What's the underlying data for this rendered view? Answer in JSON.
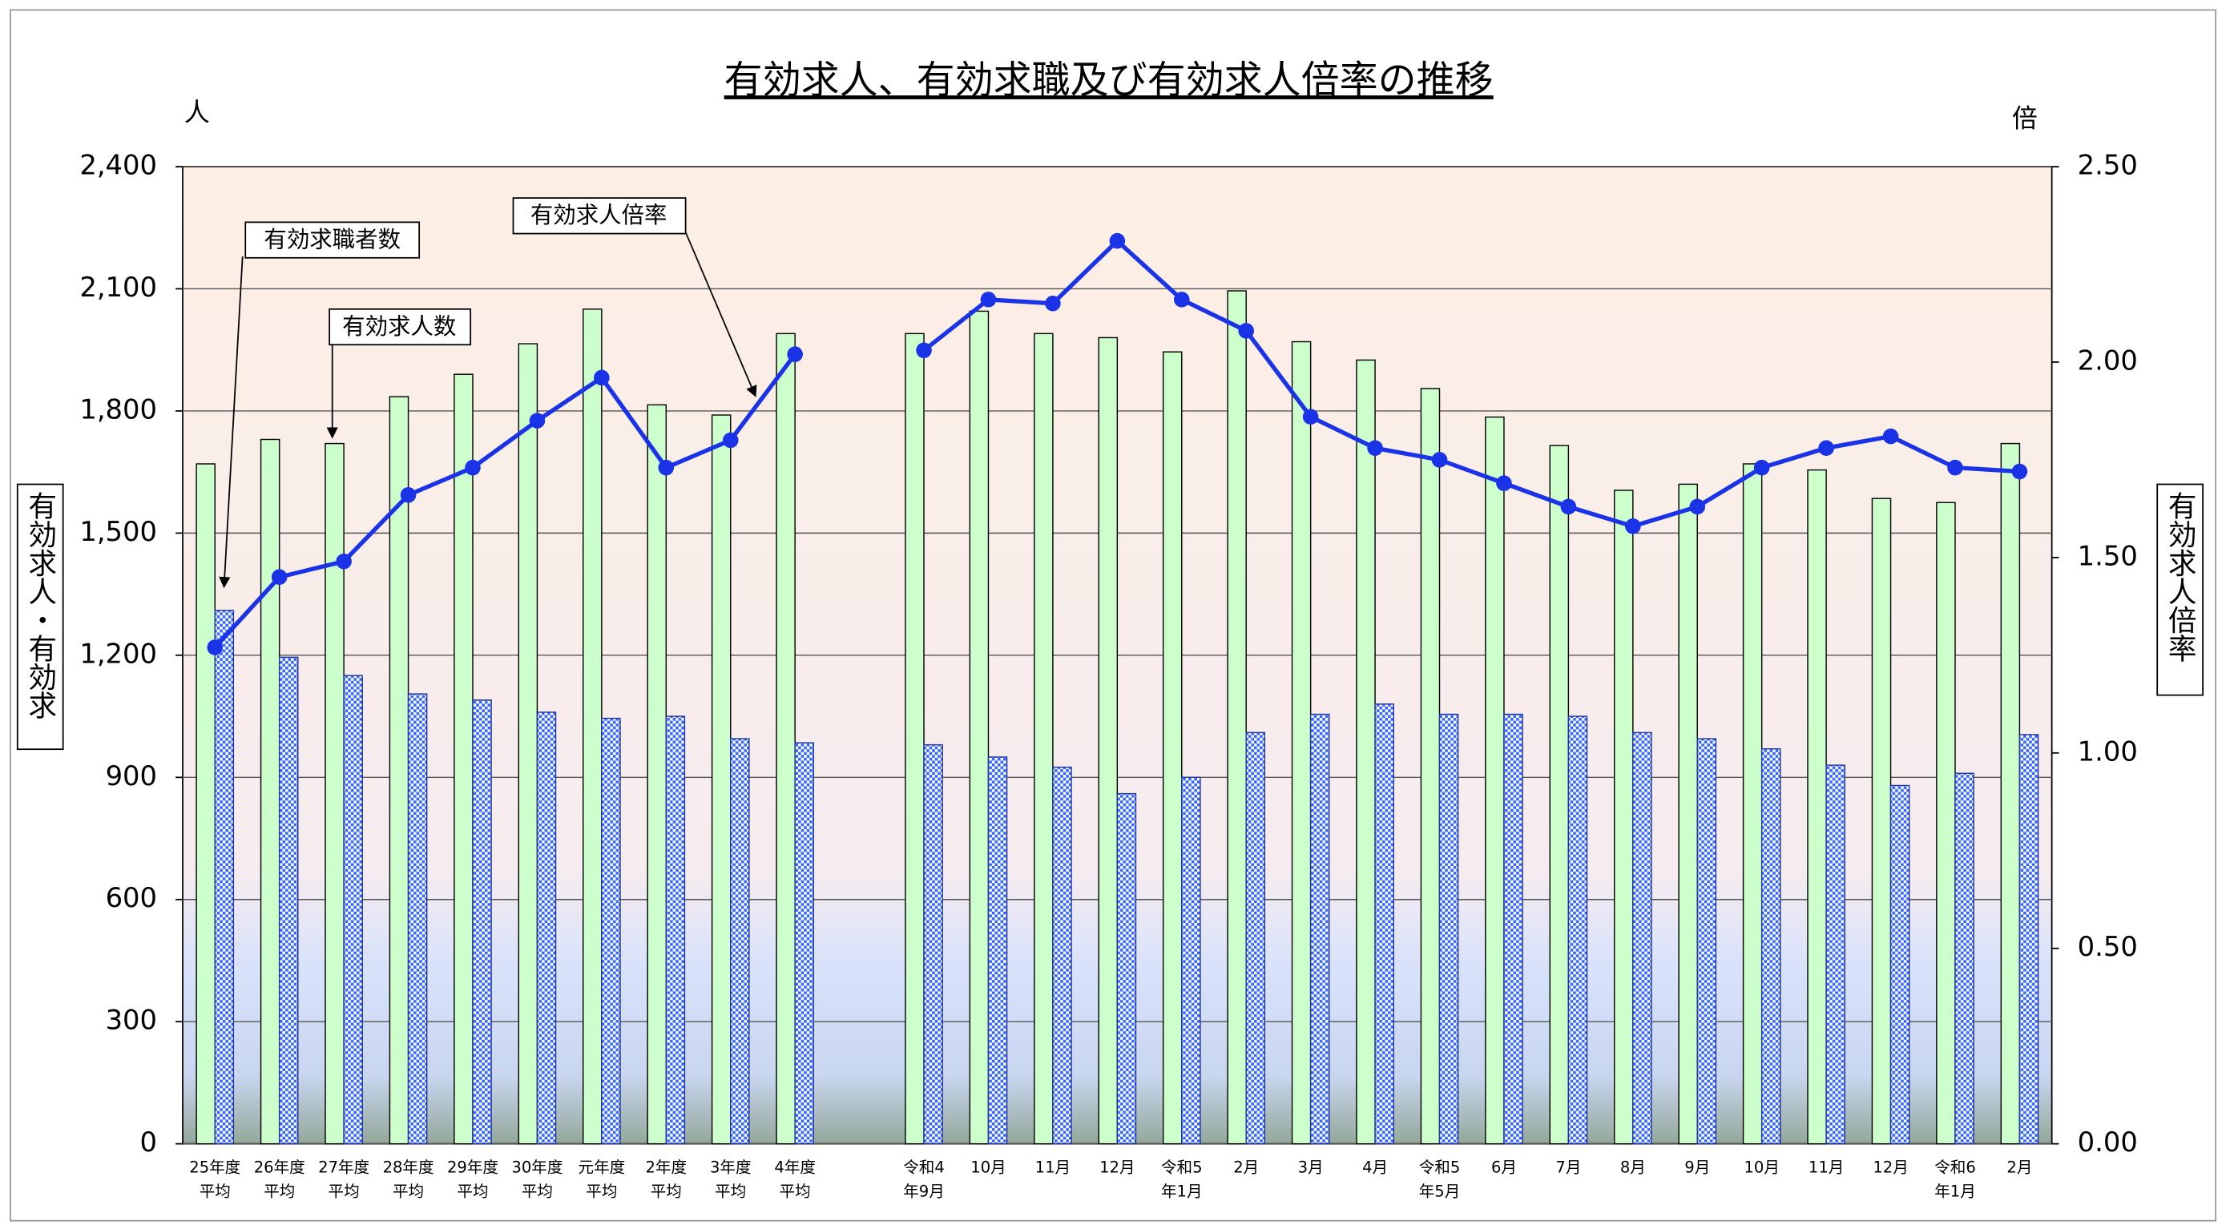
{
  "chart_data": {
    "type": "bar-line",
    "title": "有効求人、有効求職及び有効求人倍率の推移",
    "y_unit": "人",
    "y2_unit": "倍",
    "y_label": "有効求人・有効求",
    "y2_label": "有効求人倍率",
    "categories": [
      [
        "25年度",
        "平均"
      ],
      [
        "26年度",
        "平均"
      ],
      [
        "27年度",
        "平均"
      ],
      [
        "28年度",
        "平均"
      ],
      [
        "29年度",
        "平均"
      ],
      [
        "30年度",
        "平均"
      ],
      [
        "元年度",
        "平均"
      ],
      [
        "2年度",
        "平均"
      ],
      [
        "3年度",
        "平均"
      ],
      [
        "4年度",
        "平均"
      ],
      null,
      [
        "令和4",
        "年9月"
      ],
      [
        "10月"
      ],
      [
        "11月"
      ],
      [
        "12月"
      ],
      [
        "令和5",
        "年1月"
      ],
      [
        "2月"
      ],
      [
        "3月"
      ],
      [
        "4月"
      ],
      [
        "令和5",
        "年5月"
      ],
      [
        "6月"
      ],
      [
        "7月"
      ],
      [
        "8月"
      ],
      [
        "9月"
      ],
      [
        "10月"
      ],
      [
        "11月"
      ],
      [
        "12月"
      ],
      [
        "令和6",
        "年1月"
      ],
      [
        "2月"
      ]
    ],
    "series": [
      {
        "name": "有効求人数",
        "color": "#ccffcc",
        "values": [
          1670,
          1730,
          1720,
          1835,
          1890,
          1965,
          2050,
          1815,
          1790,
          1990,
          null,
          1990,
          2045,
          1990,
          1980,
          1945,
          2095,
          1970,
          1925,
          1855,
          1785,
          1715,
          1605,
          1620,
          1670,
          1655,
          1585,
          1575,
          1720
        ]
      },
      {
        "name": "有効求職者数",
        "color": "#3366ff",
        "values": [
          1310,
          1195,
          1150,
          1105,
          1090,
          1060,
          1045,
          1050,
          995,
          985,
          null,
          980,
          950,
          925,
          860,
          900,
          1010,
          1055,
          1080,
          1055,
          1055,
          1050,
          1010,
          995,
          970,
          930,
          880,
          910,
          1005
        ]
      },
      {
        "name": "有効求人倍率",
        "color": "#1a33e6",
        "axis": "y2",
        "values": [
          1.27,
          1.45,
          1.49,
          1.66,
          1.73,
          1.85,
          1.96,
          1.73,
          1.8,
          2.02,
          null,
          2.03,
          2.16,
          2.15,
          2.31,
          2.16,
          2.08,
          1.86,
          1.78,
          1.75,
          1.69,
          1.63,
          1.58,
          1.63,
          1.73,
          1.78,
          1.81,
          1.73,
          1.72
        ]
      }
    ],
    "ylim": [
      0,
      2400
    ],
    "yticks": [
      0,
      300,
      600,
      900,
      {
        "value": 1200,
        "label": "1,200"
      },
      {
        "value": 1500,
        "label": "1,500"
      },
      {
        "value": 1800,
        "label": "1,800"
      },
      {
        "value": 2100,
        "label": "2,100"
      },
      {
        "value": 2400,
        "label": "2,400"
      }
    ],
    "y2lim": [
      0,
      2.5
    ],
    "y2ticks": [
      {
        "value": 0,
        "label": "0.00"
      },
      {
        "value": 0.5,
        "label": "0.50"
      },
      {
        "value": 1,
        "label": "1.00"
      },
      {
        "value": 1.5,
        "label": "1.50"
      },
      {
        "value": 2,
        "label": "2.00"
      },
      {
        "value": 2.5,
        "label": "2.50"
      }
    ],
    "grid": true
  }
}
